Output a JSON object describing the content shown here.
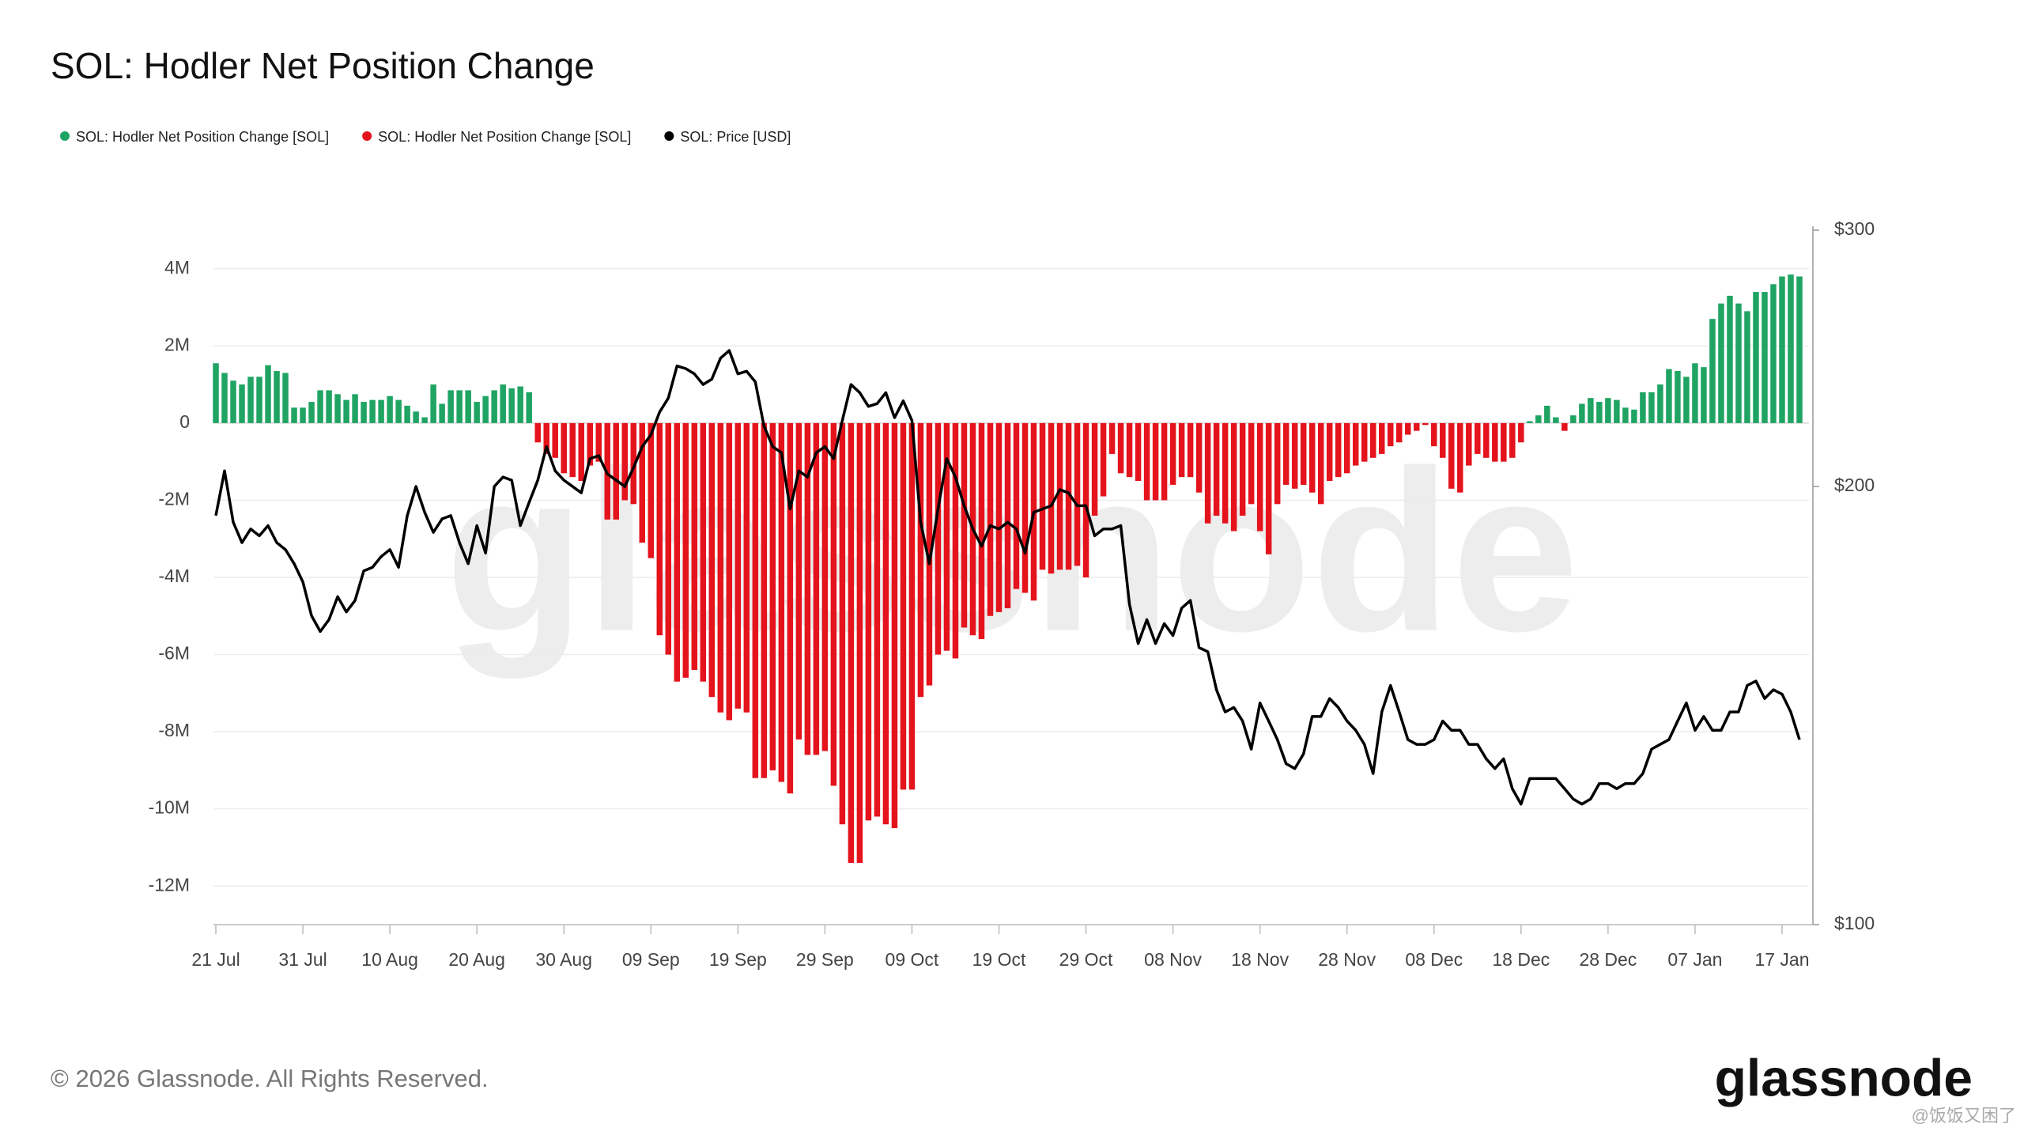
{
  "chart_data": {
    "type": "bar",
    "title": "SOL: Hodler Net Position Change",
    "footer": "© 2026 Glassnode. All Rights Reserved.",
    "brand": "glassnode",
    "watermark_user": "@饭饭又困了",
    "categories": [
      "21 Jul",
      null,
      null,
      null,
      null,
      null,
      null,
      null,
      null,
      null,
      "31 Jul",
      null,
      null,
      null,
      null,
      null,
      null,
      null,
      null,
      null,
      "10 Aug",
      null,
      null,
      null,
      null,
      null,
      null,
      null,
      null,
      null,
      "20 Aug",
      null,
      null,
      null,
      null,
      null,
      null,
      null,
      null,
      null,
      "30 Aug",
      null,
      null,
      null,
      null,
      null,
      null,
      null,
      null,
      null,
      "09 Sep",
      null,
      null,
      null,
      null,
      null,
      null,
      null,
      null,
      null,
      "19 Sep",
      null,
      null,
      null,
      null,
      null,
      null,
      null,
      null,
      null,
      "29 Sep",
      null,
      null,
      null,
      null,
      null,
      null,
      null,
      null,
      null,
      "09 Oct",
      null,
      null,
      null,
      null,
      null,
      null,
      null,
      null,
      null,
      "19 Oct",
      null,
      null,
      null,
      null,
      null,
      null,
      null,
      null,
      null,
      "29 Oct",
      null,
      null,
      null,
      null,
      null,
      null,
      null,
      null,
      null,
      "08 Nov",
      null,
      null,
      null,
      null,
      null,
      null,
      null,
      null,
      null,
      "18 Nov",
      null,
      null,
      null,
      null,
      null,
      null,
      null,
      null,
      null,
      "28 Nov",
      null,
      null,
      null,
      null,
      null,
      null,
      null,
      null,
      null,
      "08 Dec",
      null,
      null,
      null,
      null,
      null,
      null,
      null,
      null,
      null,
      "18 Dec",
      null,
      null,
      null,
      null,
      null,
      null,
      null,
      null,
      null,
      "28 Dec",
      null,
      null,
      null,
      null,
      null,
      null,
      null,
      null,
      null,
      "07 Jan",
      null,
      null,
      null,
      null,
      null,
      null,
      null,
      null,
      null,
      "17 Jan",
      null,
      null
    ],
    "ylim": [
      -13000000,
      5000000
    ],
    "yticks": [
      {
        "value": 4000000,
        "label": "4M"
      },
      {
        "value": 2000000,
        "label": "2M"
      },
      0,
      {
        "value": -2000000,
        "label": "-2M"
      },
      {
        "value": -4000000,
        "label": "-4M"
      },
      {
        "value": -6000000,
        "label": "-6M"
      },
      {
        "value": -8000000,
        "label": "-8M"
      },
      {
        "value": -10000000,
        "label": "-10M"
      },
      {
        "value": -12000000,
        "label": "-12M"
      }
    ],
    "y2lim": [
      100,
      300
    ],
    "y2ticks": [
      {
        "value": 100,
        "label": "$100"
      },
      {
        "value": 200,
        "label": "$200"
      },
      {
        "value": 300,
        "label": "$300"
      }
    ],
    "y2_log": true,
    "grid": true,
    "legend": "top-left",
    "series": [
      {
        "name": "SOL: Hodler Net Position Change [SOL]",
        "color": "#1fa463",
        "values": [
          1550000,
          1300000,
          1100000,
          1000000,
          1200000,
          1200000,
          1500000,
          1350000,
          1300000,
          400000,
          400000,
          550000,
          850000,
          850000,
          750000,
          600000,
          750000,
          550000,
          600000,
          600000,
          700000,
          600000,
          450000,
          300000,
          150000,
          1000000,
          500000,
          850000,
          850000,
          850000,
          550000,
          700000,
          850000,
          1000000,
          900000,
          950000,
          800000,
          null,
          null,
          null,
          null,
          null,
          null,
          null,
          null,
          null,
          null,
          null,
          null,
          null,
          null,
          null,
          null,
          null,
          null,
          null,
          null,
          null,
          null,
          null,
          null,
          null,
          null,
          null,
          null,
          null,
          null,
          null,
          null,
          null,
          null,
          null,
          null,
          null,
          null,
          null,
          null,
          null,
          null,
          null,
          null,
          null,
          null,
          null,
          null,
          null,
          null,
          null,
          null,
          null,
          null,
          null,
          null,
          null,
          null,
          null,
          null,
          null,
          null,
          null,
          null,
          null,
          null,
          null,
          null,
          null,
          null,
          null,
          null,
          null,
          null,
          null,
          null,
          null,
          null,
          null,
          null,
          null,
          null,
          null,
          null,
          null,
          null,
          null,
          null,
          null,
          null,
          null,
          null,
          null,
          null,
          null,
          null,
          null,
          null,
          null,
          null,
          null,
          null,
          null,
          null,
          null,
          null,
          null,
          null,
          null,
          null,
          null,
          null,
          null,
          null,
          50000,
          200000,
          450000,
          150000,
          null,
          200000,
          500000,
          650000,
          550000,
          650000,
          600000,
          400000,
          350000,
          800000,
          800000,
          1000000,
          1400000,
          1350000,
          1200000,
          1550000,
          1450000,
          2700000,
          3100000,
          3300000,
          3100000,
          2900000,
          3400000,
          3400000,
          3600000,
          3800000,
          3850000,
          3800000
        ]
      },
      {
        "name": "SOL: Hodler Net Position Change [SOL]",
        "color": "#e4131c",
        "values": [
          null,
          null,
          null,
          null,
          null,
          null,
          null,
          null,
          null,
          null,
          null,
          null,
          null,
          null,
          null,
          null,
          null,
          null,
          null,
          null,
          null,
          null,
          null,
          null,
          null,
          null,
          null,
          null,
          null,
          null,
          null,
          null,
          null,
          null,
          null,
          null,
          null,
          -500000,
          -800000,
          -900000,
          -1300000,
          -1400000,
          -1500000,
          -1100000,
          -1000000,
          -2500000,
          -2500000,
          -2000000,
          -2100000,
          -3100000,
          -3500000,
          -5500000,
          -6000000,
          -6700000,
          -6600000,
          -6400000,
          -6700000,
          -7100000,
          -7500000,
          -7700000,
          -7400000,
          -7500000,
          -9200000,
          -9200000,
          -9000000,
          -9300000,
          -9600000,
          -8200000,
          -8600000,
          -8600000,
          -8500000,
          -9400000,
          -10400000,
          -11400000,
          -11400000,
          -10300000,
          -10200000,
          -10400000,
          -10500000,
          -9500000,
          -9500000,
          -7100000,
          -6800000,
          -6000000,
          -5900000,
          -6100000,
          -5300000,
          -5500000,
          -5600000,
          -5000000,
          -4900000,
          -4800000,
          -4300000,
          -4400000,
          -4600000,
          -3800000,
          -3900000,
          -3800000,
          -3800000,
          -3700000,
          -4000000,
          -2400000,
          -1900000,
          -800000,
          -1300000,
          -1400000,
          -1500000,
          -2000000,
          -2000000,
          -2000000,
          -1600000,
          -1400000,
          -1400000,
          -1800000,
          -2600000,
          -2400000,
          -2600000,
          -2800000,
          -2400000,
          -2100000,
          -2800000,
          -3400000,
          -2100000,
          -1600000,
          -1700000,
          -1600000,
          -1800000,
          -2100000,
          -1500000,
          -1400000,
          -1300000,
          -1100000,
          -1000000,
          -900000,
          -800000,
          -600000,
          -500000,
          -300000,
          -200000,
          -50000,
          -600000,
          -900000,
          -1700000,
          -1800000,
          -1100000,
          -800000,
          -900000,
          -1000000,
          -1000000,
          -900000,
          -500000,
          null,
          null,
          null,
          null,
          -200000,
          null,
          null,
          null,
          null,
          null,
          null,
          null,
          null,
          null,
          null,
          null,
          null,
          null,
          null,
          null,
          null,
          null,
          null,
          null,
          null,
          null,
          null,
          null,
          null,
          null,
          null,
          null
        ]
      },
      {
        "name": "SOL: Price [USD]",
        "color": "#000000",
        "type": "line",
        "axis": "y2",
        "values": [
          191,
          205,
          189,
          183,
          187,
          185,
          188,
          183,
          181,
          177,
          172,
          163,
          159,
          162,
          168,
          164,
          167,
          175,
          176,
          179,
          181,
          176,
          191,
          200,
          192,
          186,
          190,
          191,
          183,
          177,
          188,
          180,
          200,
          203,
          202,
          188,
          195,
          202,
          213,
          205,
          202,
          200,
          198,
          209,
          210,
          204,
          202,
          200,
          206,
          213,
          217,
          225,
          230,
          242,
          241,
          239,
          235,
          237,
          245,
          248,
          239,
          240,
          236,
          220,
          213,
          211,
          193,
          205,
          203,
          211,
          213,
          209,
          222,
          235,
          232,
          227,
          228,
          232,
          223,
          229,
          222,
          189,
          177,
          193,
          209,
          203,
          194,
          187,
          182,
          188,
          187,
          189,
          187,
          180,
          192,
          193,
          194,
          199,
          198,
          194,
          194,
          185,
          187,
          187,
          188,
          166,
          156,
          162,
          156,
          161,
          158,
          165,
          167,
          155,
          154,
          145,
          140,
          141,
          138,
          132,
          142,
          138,
          134,
          129,
          128,
          131,
          139,
          139,
          143,
          141,
          138,
          136,
          133,
          127,
          140,
          146,
          140,
          134,
          133,
          133,
          134,
          138,
          136,
          136,
          133,
          133,
          130,
          128,
          130,
          124,
          121,
          126,
          126,
          126,
          126,
          124,
          122,
          121,
          122,
          125,
          125,
          124,
          125,
          125,
          127,
          132,
          133,
          134,
          138,
          142,
          136,
          139,
          136,
          136,
          140,
          140,
          146,
          147,
          143,
          145,
          144,
          140,
          134
        ]
      }
    ]
  }
}
